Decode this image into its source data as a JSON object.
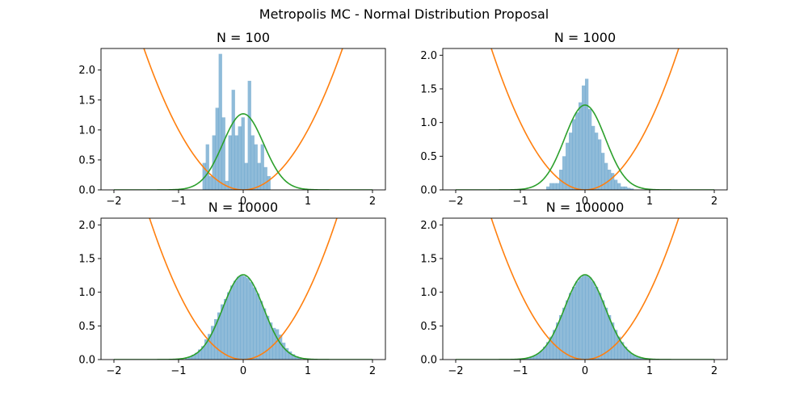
{
  "figure": {
    "title": "Metropolis MC - Normal Distribution Proposal"
  },
  "colors": {
    "histogram": "#1f77b4",
    "potential": "#ff7f0e",
    "gaussian": "#2ca02c",
    "axes": "#000000"
  },
  "chart_data": [
    {
      "type": "bar",
      "title": "N = 100",
      "xlim": [
        -2.2,
        2.2
      ],
      "ylim": [
        0,
        2.36
      ],
      "xticks": [
        -2,
        -1,
        0,
        1,
        2
      ],
      "xtick_labels": [
        "−2",
        "−1",
        "0",
        "1",
        "2"
      ],
      "yticks": [
        0,
        0.5,
        1,
        1.5,
        2
      ],
      "ytick_labels": [
        "0.0",
        "0.5",
        "1.0",
        "1.5",
        "2.0"
      ],
      "histogram": {
        "bins": [
          [
            -0.63,
            -0.58,
            0.45
          ],
          [
            -0.58,
            -0.53,
            0.76
          ],
          [
            -0.53,
            -0.48,
            0.23
          ],
          [
            -0.48,
            -0.43,
            0.91
          ],
          [
            -0.43,
            -0.38,
            1.37
          ],
          [
            -0.38,
            -0.33,
            2.27
          ],
          [
            -0.33,
            -0.28,
            1.21
          ],
          [
            -0.28,
            -0.23,
            0.15
          ],
          [
            -0.23,
            -0.18,
            0.91
          ],
          [
            -0.18,
            -0.13,
            1.67
          ],
          [
            -0.13,
            -0.08,
            0.91
          ],
          [
            -0.08,
            -0.03,
            1.06
          ],
          [
            -0.03,
            0.02,
            1.21
          ],
          [
            0.02,
            0.07,
            0.45
          ],
          [
            0.07,
            0.12,
            1.82
          ],
          [
            0.12,
            0.17,
            0.91
          ],
          [
            0.17,
            0.22,
            0.76
          ],
          [
            0.22,
            0.27,
            0.45
          ],
          [
            0.27,
            0.32,
            0.76
          ],
          [
            0.32,
            0.37,
            0.38
          ],
          [
            0.37,
            0.42,
            0.23
          ]
        ]
      },
      "series": [
        {
          "kind": "x^2"
        },
        {
          "kind": "gaussian",
          "peak": 1.27,
          "sigma": 0.316
        }
      ]
    },
    {
      "type": "bar",
      "title": "N = 1000",
      "xlim": [
        -2.2,
        2.2
      ],
      "ylim": [
        0,
        2.1
      ],
      "xticks": [
        -2,
        -1,
        0,
        1,
        2
      ],
      "xtick_labels": [
        "−2",
        "−1",
        "0",
        "1",
        "2"
      ],
      "yticks": [
        0,
        0.5,
        1,
        1.5,
        2
      ],
      "ytick_labels": [
        "0.0",
        "0.5",
        "1.0",
        "1.5",
        "2.0"
      ],
      "histogram": {
        "bins": [
          [
            -0.6,
            -0.55,
            0.05
          ],
          [
            -0.55,
            -0.5,
            0.1
          ],
          [
            -0.5,
            -0.45,
            0.1
          ],
          [
            -0.45,
            -0.4,
            0.1
          ],
          [
            -0.4,
            -0.35,
            0.3
          ],
          [
            -0.35,
            -0.3,
            0.5
          ],
          [
            -0.3,
            -0.25,
            0.7
          ],
          [
            -0.25,
            -0.2,
            0.85
          ],
          [
            -0.2,
            -0.15,
            1.05
          ],
          [
            -0.15,
            -0.1,
            1.15
          ],
          [
            -0.1,
            -0.05,
            1.3
          ],
          [
            -0.05,
            0,
            1.55
          ],
          [
            0,
            0.05,
            1.65
          ],
          [
            0.05,
            0.1,
            1.2
          ],
          [
            0.1,
            0.15,
            0.95
          ],
          [
            0.15,
            0.2,
            0.85
          ],
          [
            0.2,
            0.25,
            0.75
          ],
          [
            0.25,
            0.3,
            0.55
          ],
          [
            0.3,
            0.35,
            0.4
          ],
          [
            0.35,
            0.4,
            0.3
          ],
          [
            0.4,
            0.45,
            0.25
          ],
          [
            0.45,
            0.5,
            0.15
          ],
          [
            0.5,
            0.55,
            0.1
          ],
          [
            0.55,
            0.6,
            0.05
          ],
          [
            0.6,
            0.65,
            0.05
          ],
          [
            0.65,
            0.7,
            0.03
          ],
          [
            0.7,
            0.75,
            0.02
          ]
        ]
      },
      "series": [
        {
          "kind": "x^2"
        },
        {
          "kind": "gaussian",
          "peak": 1.26,
          "sigma": 0.316
        }
      ]
    },
    {
      "type": "bar",
      "title": "N = 10000",
      "xlim": [
        -2.2,
        2.2
      ],
      "ylim": [
        0,
        2.1
      ],
      "xticks": [
        -2,
        -1,
        0,
        1,
        2
      ],
      "xtick_labels": [
        "−2",
        "−1",
        "0",
        "1",
        "2"
      ],
      "yticks": [
        0,
        0.5,
        1,
        1.5,
        2
      ],
      "ytick_labels": [
        "0.0",
        "0.5",
        "1.0",
        "1.5",
        "2.0"
      ],
      "histogram": {
        "bins": [
          [
            -0.9,
            -0.85,
            0.02
          ],
          [
            -0.85,
            -0.8,
            0.04
          ],
          [
            -0.8,
            -0.75,
            0.07
          ],
          [
            -0.75,
            -0.7,
            0.1
          ],
          [
            -0.7,
            -0.65,
            0.15
          ],
          [
            -0.65,
            -0.6,
            0.2
          ],
          [
            -0.6,
            -0.55,
            0.3
          ],
          [
            -0.55,
            -0.5,
            0.38
          ],
          [
            -0.5,
            -0.45,
            0.5
          ],
          [
            -0.45,
            -0.4,
            0.6
          ],
          [
            -0.4,
            -0.35,
            0.7
          ],
          [
            -0.35,
            -0.3,
            0.82
          ],
          [
            -0.3,
            -0.25,
            0.9
          ],
          [
            -0.25,
            -0.2,
            1.0
          ],
          [
            -0.2,
            -0.15,
            1.1
          ],
          [
            -0.15,
            -0.1,
            1.17
          ],
          [
            -0.1,
            -0.05,
            1.23
          ],
          [
            -0.05,
            0,
            1.25
          ],
          [
            0,
            0.05,
            1.24
          ],
          [
            0.05,
            0.1,
            1.21
          ],
          [
            0.1,
            0.15,
            1.15
          ],
          [
            0.15,
            0.2,
            1.07
          ],
          [
            0.2,
            0.25,
            0.98
          ],
          [
            0.25,
            0.3,
            0.87
          ],
          [
            0.3,
            0.35,
            0.76
          ],
          [
            0.35,
            0.4,
            0.65
          ],
          [
            0.4,
            0.45,
            0.55
          ],
          [
            0.45,
            0.5,
            0.47
          ],
          [
            0.5,
            0.55,
            0.45
          ],
          [
            0.55,
            0.6,
            0.37
          ],
          [
            0.6,
            0.65,
            0.25
          ],
          [
            0.65,
            0.7,
            0.17
          ],
          [
            0.7,
            0.75,
            0.12
          ],
          [
            0.75,
            0.8,
            0.08
          ],
          [
            0.8,
            0.85,
            0.05
          ],
          [
            0.85,
            0.9,
            0.03
          ]
        ]
      },
      "series": [
        {
          "kind": "x^2"
        },
        {
          "kind": "gaussian",
          "peak": 1.26,
          "sigma": 0.316
        }
      ]
    },
    {
      "type": "bar",
      "title": "N = 100000",
      "xlim": [
        -2.2,
        2.2
      ],
      "ylim": [
        0,
        2.1
      ],
      "xticks": [
        -2,
        -1,
        0,
        1,
        2
      ],
      "xtick_labels": [
        "−2",
        "−1",
        "0",
        "1",
        "2"
      ],
      "yticks": [
        0,
        0.5,
        1,
        1.5,
        2
      ],
      "ytick_labels": [
        "0.0",
        "0.5",
        "1.0",
        "1.5",
        "2.0"
      ],
      "histogram": {
        "bins": [
          [
            -1.0,
            -0.95,
            0.01
          ],
          [
            -0.95,
            -0.9,
            0.02
          ],
          [
            -0.9,
            -0.85,
            0.03
          ],
          [
            -0.85,
            -0.8,
            0.04
          ],
          [
            -0.8,
            -0.75,
            0.06
          ],
          [
            -0.75,
            -0.7,
            0.09
          ],
          [
            -0.7,
            -0.65,
            0.13
          ],
          [
            -0.65,
            -0.6,
            0.19
          ],
          [
            -0.6,
            -0.55,
            0.26
          ],
          [
            -0.55,
            -0.5,
            0.34
          ],
          [
            -0.5,
            -0.45,
            0.44
          ],
          [
            -0.45,
            -0.4,
            0.55
          ],
          [
            -0.4,
            -0.35,
            0.66
          ],
          [
            -0.35,
            -0.3,
            0.77
          ],
          [
            -0.3,
            -0.25,
            0.88
          ],
          [
            -0.25,
            -0.2,
            0.99
          ],
          [
            -0.2,
            -0.15,
            1.08
          ],
          [
            -0.15,
            -0.1,
            1.16
          ],
          [
            -0.1,
            -0.05,
            1.22
          ],
          [
            -0.05,
            0,
            1.25
          ],
          [
            0,
            0.05,
            1.25
          ],
          [
            0.05,
            0.1,
            1.22
          ],
          [
            0.1,
            0.15,
            1.16
          ],
          [
            0.15,
            0.2,
            1.08
          ],
          [
            0.2,
            0.25,
            0.99
          ],
          [
            0.25,
            0.3,
            0.88
          ],
          [
            0.3,
            0.35,
            0.77
          ],
          [
            0.35,
            0.4,
            0.66
          ],
          [
            0.4,
            0.45,
            0.55
          ],
          [
            0.45,
            0.5,
            0.44
          ],
          [
            0.5,
            0.55,
            0.34
          ],
          [
            0.55,
            0.6,
            0.26
          ],
          [
            0.6,
            0.65,
            0.19
          ],
          [
            0.65,
            0.7,
            0.13
          ],
          [
            0.7,
            0.75,
            0.09
          ],
          [
            0.75,
            0.8,
            0.06
          ],
          [
            0.8,
            0.85,
            0.04
          ],
          [
            0.85,
            0.9,
            0.03
          ],
          [
            0.9,
            0.95,
            0.02
          ],
          [
            0.95,
            1.0,
            0.01
          ]
        ]
      },
      "series": [
        {
          "kind": "x^2"
        },
        {
          "kind": "gaussian",
          "peak": 1.26,
          "sigma": 0.316
        }
      ]
    }
  ]
}
